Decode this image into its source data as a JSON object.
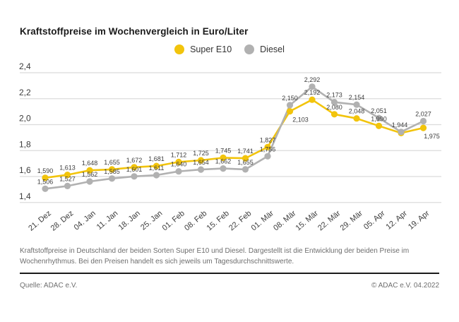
{
  "page": {
    "title": "Kraftstoffpreise im Wochenvergleich in Euro/Liter",
    "description_lines": [
      "Kraftstoffpreise in Deutschland der beiden Sorten Super E10 und Diesel. Dargestellt ist die Entwicklung der beiden Preise im",
      "Wochenrhythmus. Bei den Preisen handelt es sich jeweils um Tagesdurchschnittswerte."
    ],
    "source_left": "Quelle: ADAC e.V.",
    "source_right": "© ADAC e.V. 04.2022"
  },
  "legend": {
    "items": [
      {
        "label": "Super E10",
        "color": "#F2C40C"
      },
      {
        "label": "Diesel",
        "color": "#B1B1B1"
      }
    ]
  },
  "colors": {
    "super_e10": "#F2C40C",
    "diesel": "#B1B1B1",
    "gridline": "#DBDBDB",
    "axis_text": "#3b3b3b",
    "data_label": "#3d3d3d",
    "title_text": "#1b1b1b",
    "muted_text": "#6e6e6e"
  },
  "chart_data": {
    "type": "line",
    "title": "Kraftstoffpreise im Wochenvergleich in Euro/Liter",
    "unit": "Euro/Liter",
    "grid": true,
    "legend_position": "top",
    "ylim": [
      1.4,
      2.4
    ],
    "y_ticks": [
      "2,4",
      "2,2",
      "2,0",
      "1,8",
      "1,6",
      "1,4"
    ],
    "categories": [
      "21. Dez",
      "28. Dez",
      "04. Jan",
      "11. Jan",
      "18. Jan",
      "25. Jan",
      "01. Feb",
      "08. Feb",
      "15. Feb",
      "22. Feb",
      "01. Mär",
      "08. Mär",
      "15. Mär",
      "22. Mär",
      "29. Mär",
      "05. Apr",
      "12. Apr",
      "19. Apr"
    ],
    "series": [
      {
        "name": "Super E10",
        "color": "#F2C40C",
        "values": [
          1.59,
          1.613,
          1.648,
          1.655,
          1.672,
          1.681,
          1.712,
          1.725,
          1.745,
          1.741,
          1.827,
          2.103,
          2.192,
          2.08,
          2.048,
          1.99,
          1.935,
          1.975
        ],
        "labels": [
          "1,590",
          "1,613",
          "1,648",
          "1,655",
          "1,672",
          "1,681",
          "1,712",
          "1,725",
          "1,745",
          "1,741",
          "1,827",
          "2,103",
          "2,192",
          "2,080",
          "2,048",
          "1,990",
          "",
          "1,975"
        ],
        "label_pos": [
          "above",
          "above",
          "above",
          "above",
          "above",
          "above",
          "above",
          "above",
          "above",
          "above",
          "above",
          "below",
          "above",
          "above",
          "above",
          "above",
          "none",
          "below"
        ],
        "label_dx": [
          0,
          0,
          0,
          0,
          0,
          0,
          0,
          0,
          0,
          0,
          0,
          15,
          0,
          0,
          0,
          0,
          0,
          12
        ]
      },
      {
        "name": "Diesel",
        "color": "#B1B1B1",
        "values": [
          1.506,
          1.527,
          1.562,
          1.585,
          1.601,
          1.611,
          1.64,
          1.654,
          1.662,
          1.655,
          1.756,
          2.15,
          2.292,
          2.173,
          2.154,
          2.051,
          1.944,
          2.027
        ],
        "labels": [
          "1,506",
          "1,527",
          "1,562",
          "1,585",
          "1,601",
          "1,611",
          "1,640",
          "1,654",
          "1,662",
          "1,655",
          "1,756",
          "2,150",
          "2,292",
          "2,173",
          "2,154",
          "2,051",
          "1,944",
          "2,027"
        ],
        "label_pos": [
          "above",
          "above",
          "above",
          "above",
          "above",
          "above",
          "above",
          "above",
          "above",
          "above",
          "above",
          "above",
          "above",
          "above",
          "above",
          "above",
          "above",
          "above"
        ],
        "label_dx": [
          0,
          0,
          0,
          0,
          0,
          0,
          0,
          0,
          0,
          0,
          0,
          0,
          0,
          0,
          0,
          0,
          -2,
          0
        ]
      }
    ]
  }
}
